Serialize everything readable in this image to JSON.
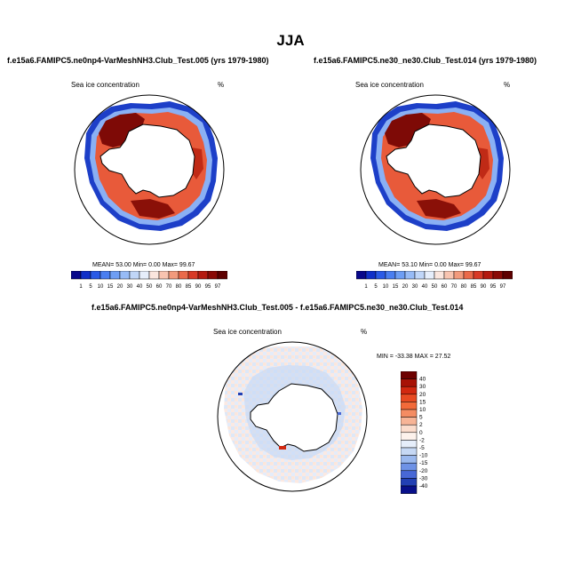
{
  "page": {
    "title": "JJA"
  },
  "panels": [
    {
      "case_title": "f.e15a6.FAMIPC5.ne0np4-VarMeshNH3.Club_Test.005 (yrs 1979-1980)",
      "variable": "Sea ice concentration",
      "units": "%",
      "stats": {
        "mean_label": "MEAN=",
        "mean": "53.00",
        "min_label": "Min=",
        "min": "0.00",
        "max_label": "Max=",
        "max": "99.67"
      }
    },
    {
      "case_title": "f.e15a6.FAMIPC5.ne30_ne30.Club_Test.014 (yrs 1979-1980)",
      "variable": "Sea ice concentration",
      "units": "%",
      "stats": {
        "mean_label": "MEAN=",
        "mean": "53.10",
        "min_label": "Min=",
        "min": "0.00",
        "max_label": "Max=",
        "max": "99.67"
      }
    },
    {
      "case_title": "f.e15a6.FAMIPC5.ne0np4-VarMeshNH3.Club_Test.005 - f.e15a6.FAMIPC5.ne30_ne30.Club_Test.014",
      "variable": "Sea ice concentration",
      "units": "%",
      "stats": {
        "min_label": "MIN =",
        "min": "-33.38",
        "max_label": "MAX =",
        "max": "27.52"
      }
    }
  ],
  "chart_data": [
    {
      "type": "heatmap",
      "projection": "south-polar-stereographic",
      "title": "f.e15a6.FAMIPC5.ne0np4-VarMeshNH3.Club_Test.005 (yrs 1979-1980)",
      "variable": "Sea ice concentration",
      "units": "%",
      "colorbar": {
        "orientation": "horizontal",
        "levels": [
          "1",
          "5",
          "10",
          "15",
          "20",
          "30",
          "40",
          "50",
          "60",
          "70",
          "80",
          "85",
          "90",
          "95",
          "97"
        ],
        "colors": [
          "#08088a",
          "#1030c8",
          "#2a5ae6",
          "#4a7ef0",
          "#6e9ef4",
          "#97bbf6",
          "#c0d6f8",
          "#e6eefb",
          "#fbe6de",
          "#f8c4b0",
          "#f29a7c",
          "#ea6a4a",
          "#d83a26",
          "#b41a10",
          "#8a0a06",
          "#5e0000"
        ]
      },
      "mean": 53.0,
      "min": 0.0,
      "max": 99.67
    },
    {
      "type": "heatmap",
      "projection": "south-polar-stereographic",
      "title": "f.e15a6.FAMIPC5.ne30_ne30.Club_Test.014 (yrs 1979-1980)",
      "variable": "Sea ice concentration",
      "units": "%",
      "colorbar": {
        "orientation": "horizontal",
        "levels": [
          "1",
          "5",
          "10",
          "15",
          "20",
          "30",
          "40",
          "50",
          "60",
          "70",
          "80",
          "85",
          "90",
          "95",
          "97"
        ],
        "colors": [
          "#08088a",
          "#1030c8",
          "#2a5ae6",
          "#4a7ef0",
          "#6e9ef4",
          "#97bbf6",
          "#c0d6f8",
          "#e6eefb",
          "#fbe6de",
          "#f8c4b0",
          "#f29a7c",
          "#ea6a4a",
          "#d83a26",
          "#b41a10",
          "#8a0a06",
          "#5e0000"
        ]
      },
      "mean": 53.1,
      "min": 0.0,
      "max": 99.67
    },
    {
      "type": "heatmap",
      "projection": "south-polar-stereographic",
      "title": "f.e15a6.FAMIPC5.ne0np4-VarMeshNH3.Club_Test.005 - f.e15a6.FAMIPC5.ne30_ne30.Club_Test.014",
      "variable": "Sea ice concentration",
      "units": "%",
      "colorbar": {
        "orientation": "vertical",
        "levels": [
          "40",
          "30",
          "20",
          "15",
          "10",
          "5",
          "2",
          "0",
          "-2",
          "-5",
          "-10",
          "-15",
          "-20",
          "-30",
          "-40"
        ],
        "colors": [
          "#6e0000",
          "#a81206",
          "#d22810",
          "#e84a22",
          "#f26a3a",
          "#f48c62",
          "#f7b496",
          "#fbdccc",
          "#fdf2ec",
          "#e6eefa",
          "#c6d8f4",
          "#9ab8ee",
          "#6e92e6",
          "#4868d6",
          "#2240b4",
          "#08108a"
        ]
      },
      "min": -33.38,
      "max": 27.52
    }
  ]
}
